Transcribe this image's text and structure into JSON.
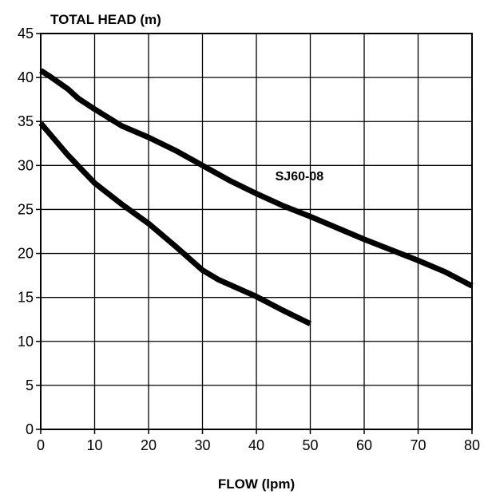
{
  "chart_data": {
    "type": "line",
    "title": "",
    "xlabel": "FLOW (lpm)",
    "ylabel": "TOTAL HEAD (m)",
    "xlim": [
      0,
      80
    ],
    "ylim": [
      0,
      45
    ],
    "x_ticks": [
      0,
      10,
      20,
      30,
      40,
      50,
      60,
      70,
      80
    ],
    "y_ticks": [
      0,
      5,
      10,
      15,
      20,
      25,
      30,
      35,
      40,
      45
    ],
    "grid": true,
    "legend": "none",
    "series": [
      {
        "x": [
          0,
          2,
          5,
          7,
          10,
          15,
          20,
          25,
          30,
          35,
          40,
          45,
          50,
          55,
          60,
          65,
          70,
          75,
          80
        ],
        "y": [
          40.8,
          40.0,
          38.7,
          37.6,
          36.4,
          34.5,
          33.2,
          31.7,
          30.0,
          28.3,
          26.8,
          25.4,
          24.2,
          22.9,
          21.6,
          20.4,
          19.2,
          17.9,
          16.3
        ]
      },
      {
        "x": [
          0,
          5,
          10,
          15,
          20,
          25,
          30,
          33,
          40,
          45,
          50
        ],
        "y": [
          34.8,
          31.2,
          28.0,
          25.6,
          23.4,
          20.8,
          18.1,
          17.0,
          15.1,
          13.5,
          12.0
        ]
      }
    ],
    "annotations": [
      {
        "text": "SJ60-08",
        "x": 43.5,
        "y": 28.3
      }
    ]
  }
}
